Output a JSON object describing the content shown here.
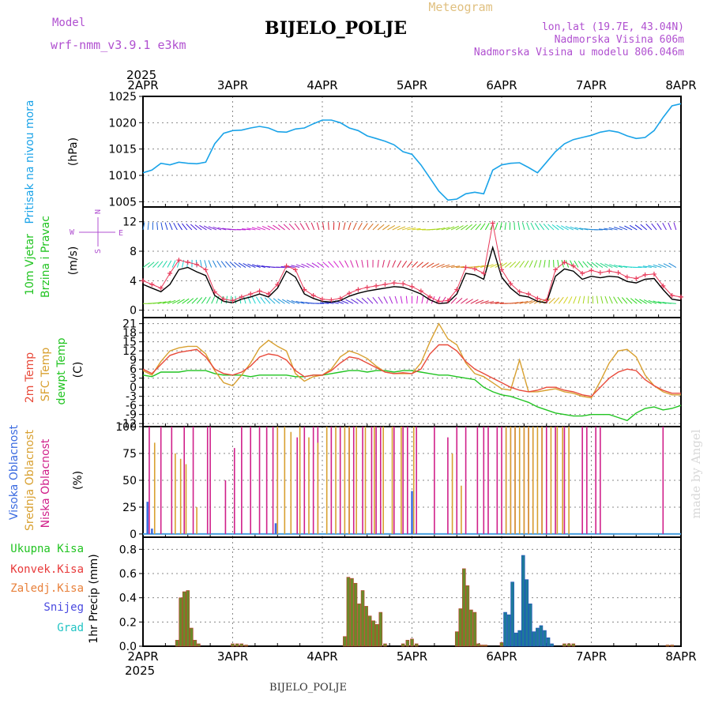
{
  "header": {
    "model_label": "Model",
    "model_name": "wrf-nmm_v3.9.1  e3km",
    "station": "BIJELO_POLJE",
    "product": "Meteogram",
    "lonlat": "lon,lat (19.7E, 43.04N)",
    "elevation": "Nadmorska Visina 606m",
    "model_elevation": "Nadmorska Visina u modelu 806.046m"
  },
  "footer": {
    "station": "BIJELO_POLJE",
    "credit": "made by Angel"
  },
  "colors": {
    "pressure": "#1aa3e8",
    "temp2m": "#e84a3a",
    "sfc": "#d8a030",
    "dew": "#22c422",
    "wind_obs": "#e83a5a",
    "wind_line": "#000000",
    "high": "#3a6ae0",
    "mid": "#d8a030",
    "low": "#d0208a",
    "total": "#22c422",
    "conv": "#e83a3a",
    "frozen": "#e8803a",
    "snow": "#4a4ae0",
    "grad": "#22c4c4",
    "violet": "#b050d0"
  },
  "chart_data": [
    {
      "id": "pressure",
      "type": "line",
      "ylabel_main": "Pritisak na nivou mora",
      "ylabel_unit": "(hPa)",
      "ylim": [
        1004,
        1025
      ],
      "yticks": [
        1005,
        1010,
        1015,
        1020,
        1025
      ],
      "x": [
        0,
        0.1,
        0.2,
        0.3,
        0.4,
        0.5,
        0.6,
        0.7,
        0.8,
        0.9,
        1.0,
        1.1,
        1.2,
        1.3,
        1.4,
        1.5,
        1.6,
        1.7,
        1.8,
        1.9,
        2.0,
        2.1,
        2.2,
        2.3,
        2.4,
        2.5,
        2.6,
        2.7,
        2.8,
        2.9,
        3.0,
        3.1,
        3.2,
        3.3,
        3.4,
        3.5,
        3.6,
        3.7,
        3.8,
        3.9,
        4.0,
        4.1,
        4.2,
        4.3,
        4.4,
        4.5,
        4.6,
        4.7,
        4.8,
        4.9,
        5.0,
        5.1,
        5.2,
        5.3,
        5.4,
        5.5,
        5.6,
        5.7,
        5.8,
        5.9,
        6.0
      ],
      "values": [
        1010.5,
        1011,
        1012.3,
        1012,
        1012.5,
        1012.3,
        1012.2,
        1012.5,
        1016,
        1018,
        1018.5,
        1018.6,
        1019,
        1019.3,
        1019,
        1018.3,
        1018.2,
        1018.8,
        1019,
        1019.8,
        1020.5,
        1020.5,
        1020,
        1019,
        1018.5,
        1017.5,
        1017,
        1016.5,
        1015.8,
        1014.5,
        1014,
        1012,
        1009.5,
        1007,
        1005.3,
        1005.5,
        1006.5,
        1006.8,
        1006.5,
        1011,
        1012,
        1012.3,
        1012.4,
        1011.5,
        1010.5,
        1012.5,
        1014.5,
        1016,
        1016.8,
        1017.2,
        1017.6,
        1018.2,
        1018.5,
        1018.2,
        1017.5,
        1017,
        1017.2,
        1018.5,
        1021,
        1023.2,
        1023.6
      ]
    },
    {
      "id": "wind",
      "type": "line",
      "ylabel_main": "10m Vjetar",
      "ylabel_main2": "Brzina i Pravac",
      "ylabel_unit": "(m/s)",
      "compass": [
        "N",
        "S",
        "W",
        "E"
      ],
      "ylim": [
        -1,
        14
      ],
      "yticks": [
        0,
        4,
        8,
        12
      ],
      "x": [
        0,
        0.1,
        0.2,
        0.3,
        0.4,
        0.5,
        0.6,
        0.7,
        0.8,
        0.9,
        1.0,
        1.1,
        1.2,
        1.3,
        1.4,
        1.5,
        1.6,
        1.7,
        1.8,
        1.9,
        2.0,
        2.1,
        2.2,
        2.3,
        2.4,
        2.5,
        2.6,
        2.7,
        2.8,
        2.9,
        3.0,
        3.1,
        3.2,
        3.3,
        3.4,
        3.5,
        3.6,
        3.7,
        3.8,
        3.9,
        4.0,
        4.1,
        4.2,
        4.3,
        4.4,
        4.5,
        4.6,
        4.7,
        4.8,
        4.9,
        5.0,
        5.1,
        5.2,
        5.3,
        5.4,
        5.5,
        5.6,
        5.7,
        5.8,
        5.9,
        6.0
      ],
      "series": [
        {
          "name": "wind line",
          "values": [
            3.5,
            3,
            2.5,
            3.5,
            5.5,
            5.8,
            5.2,
            4.7,
            2,
            1.2,
            1,
            1.5,
            1.8,
            2.2,
            1.8,
            3,
            5.3,
            4.5,
            2.2,
            1.6,
            1.2,
            1.1,
            1.3,
            1.9,
            2.3,
            2.6,
            2.8,
            3,
            3.2,
            3.1,
            2.7,
            2.2,
            1.4,
            0.9,
            1,
            2.2,
            5,
            4.8,
            4.2,
            8.5,
            4.5,
            3,
            2,
            1.8,
            1.2,
            1,
            4.6,
            5.6,
            5.3,
            4.2,
            4.6,
            4.4,
            4.6,
            4.5,
            3.9,
            3.7,
            4.2,
            4.3,
            2.8,
            1.5,
            1.3
          ]
        },
        {
          "name": "gust",
          "values": [
            4,
            3.5,
            3,
            5,
            6.8,
            6.5,
            6.2,
            5.5,
            2.5,
            1.5,
            1.3,
            1.8,
            2.2,
            2.6,
            2.2,
            3.5,
            6,
            5.5,
            2.8,
            2,
            1.5,
            1.4,
            1.6,
            2.3,
            2.8,
            3.1,
            3.3,
            3.5,
            3.7,
            3.6,
            3.2,
            2.6,
            1.8,
            1.2,
            1.3,
            2.8,
            5.8,
            5.6,
            5,
            11.8,
            5.5,
            3.6,
            2.5,
            2.2,
            1.6,
            1.3,
            5.5,
            6.5,
            6,
            5,
            5.4,
            5.1,
            5.3,
            5.1,
            4.5,
            4.3,
            4.8,
            4.9,
            3.3,
            2,
            1.8
          ]
        }
      ]
    },
    {
      "id": "temperature",
      "type": "line",
      "ylabel_main": "2m Temp",
      "ylabel_main2": "SFC Temp",
      "ylabel_main3": "dewpt Temp",
      "ylabel_unit": "(C)",
      "ylim": [
        -13,
        23
      ],
      "yticks": [
        -12,
        -9,
        -6,
        -3,
        0,
        3,
        6,
        9,
        12,
        15,
        18,
        21
      ],
      "x": [
        0,
        0.1,
        0.2,
        0.3,
        0.4,
        0.5,
        0.6,
        0.7,
        0.8,
        0.9,
        1.0,
        1.1,
        1.2,
        1.3,
        1.4,
        1.5,
        1.6,
        1.7,
        1.8,
        1.9,
        2.0,
        2.1,
        2.2,
        2.3,
        2.4,
        2.5,
        2.6,
        2.7,
        2.8,
        2.9,
        3.0,
        3.1,
        3.2,
        3.3,
        3.4,
        3.5,
        3.6,
        3.7,
        3.8,
        3.9,
        4.0,
        4.1,
        4.2,
        4.3,
        4.4,
        4.5,
        4.6,
        4.7,
        4.8,
        4.9,
        5.0,
        5.1,
        5.2,
        5.3,
        5.4,
        5.5,
        5.6,
        5.7,
        5.8,
        5.9,
        6.0
      ],
      "series": [
        {
          "name": "2m Temp",
          "values": [
            6,
            4.5,
            7.5,
            10.5,
            11.5,
            12,
            12.5,
            10,
            6,
            4.5,
            4,
            5,
            7,
            10,
            11,
            10.5,
            9,
            5.5,
            3.5,
            4,
            4,
            5.5,
            8,
            10,
            9.5,
            8,
            6.5,
            5,
            4.5,
            4.8,
            4.5,
            6,
            11,
            14,
            14,
            12,
            8.5,
            6,
            4.5,
            3,
            1.5,
            0,
            -1,
            -1.5,
            -1,
            0,
            0,
            -1,
            -1.5,
            -2.5,
            -3,
            0,
            3,
            5,
            6,
            5.5,
            2.5,
            0.5,
            -1,
            -2,
            -2
          ]
        },
        {
          "name": "SFC Temp",
          "values": [
            5.5,
            4,
            8.5,
            12,
            13,
            13.5,
            13.5,
            11,
            5.5,
            1.5,
            0.5,
            4,
            8,
            13,
            15.5,
            13.5,
            12,
            4.5,
            2,
            3.5,
            4,
            6,
            10,
            12,
            11,
            9.5,
            7,
            5,
            4.5,
            4.5,
            4.5,
            8,
            15,
            21,
            16,
            14,
            8,
            4.5,
            3.5,
            1.5,
            -0.5,
            -1,
            9,
            -1.5,
            -1.5,
            -1,
            -0.5,
            -1.5,
            -2,
            -3,
            -3.5,
            2,
            8,
            12,
            12.5,
            10,
            4,
            0.5,
            -1.5,
            -2.5,
            -2.5
          ]
        },
        {
          "name": "dewpt Temp",
          "values": [
            4,
            3.5,
            5,
            5,
            5,
            5.5,
            5.5,
            5.5,
            4.5,
            4,
            4,
            4,
            3.5,
            4,
            4,
            4,
            4,
            3.5,
            3.5,
            4,
            4,
            4.5,
            5,
            5.5,
            5.5,
            5,
            5.5,
            5.5,
            5,
            5.5,
            5.5,
            5,
            4.5,
            4,
            4,
            3.5,
            3,
            2.5,
            0,
            -1.5,
            -2.5,
            -3,
            -4,
            -5,
            -6.5,
            -7.5,
            -8.5,
            -9,
            -9.5,
            -9.5,
            -9,
            -9,
            -9,
            -10,
            -11,
            -8.5,
            -7,
            -6.5,
            -7.5,
            -7,
            -6
          ]
        }
      ]
    },
    {
      "id": "cloud",
      "type": "bar",
      "ylabel_main": "Visoka Oblacnost",
      "ylabel_main2": "Srednja Oblacnost",
      "ylabel_main3": "Niska Oblacnost",
      "ylabel_unit": "(%)",
      "ylim": [
        -3,
        100
      ],
      "yticks": [
        0,
        25,
        50,
        75,
        100
      ],
      "series": [
        {
          "name": "low",
          "x": [
            0.07,
            0.2,
            0.32,
            0.46,
            0.56,
            0.72,
            0.75,
            0.92,
            1.02,
            1.1,
            1.2,
            1.3,
            1.38,
            1.45,
            1.5,
            1.72,
            1.8,
            1.9,
            1.95,
            2.1,
            2.2,
            2.3,
            2.35,
            2.45,
            2.55,
            2.6,
            2.65,
            2.8,
            2.9,
            2.95,
            3.05,
            3.25,
            3.4,
            3.5,
            3.6,
            3.73,
            3.8,
            3.85,
            3.95,
            4.0,
            4.05,
            4.1,
            4.15,
            4.25,
            4.3,
            4.35,
            4.45,
            4.5,
            4.6,
            4.7,
            4.9,
            4.95,
            5.05,
            5.1,
            5.8
          ],
          "values": [
            100,
            100,
            100,
            100,
            100,
            100,
            100,
            50,
            80,
            100,
            100,
            100,
            100,
            100,
            100,
            90,
            100,
            100,
            100,
            100,
            100,
            100,
            100,
            100,
            100,
            100,
            100,
            100,
            100,
            100,
            100,
            100,
            90,
            100,
            100,
            100,
            100,
            100,
            100,
            100,
            100,
            100,
            100,
            100,
            100,
            100,
            100,
            100,
            100,
            100,
            100,
            100,
            100,
            100,
            100
          ]
        },
        {
          "name": "mid",
          "x": [
            0.13,
            0.36,
            0.42,
            0.48,
            0.6,
            1.5,
            1.58,
            1.65,
            1.75,
            1.85,
            1.95,
            2.05,
            2.15,
            2.25,
            2.3,
            2.38,
            2.48,
            2.58,
            2.68,
            2.78,
            2.88,
            3.02,
            3.45,
            3.55,
            4.05,
            4.1,
            4.15,
            4.2,
            4.25,
            4.3,
            4.35,
            4.4,
            4.45,
            4.55,
            4.62,
            4.68,
            4.75
          ],
          "values": [
            85,
            75,
            70,
            65,
            25,
            100,
            100,
            95,
            100,
            90,
            85,
            100,
            100,
            100,
            100,
            100,
            100,
            100,
            100,
            100,
            100,
            100,
            75,
            45,
            100,
            100,
            100,
            100,
            100,
            100,
            100,
            100,
            100,
            100,
            100,
            100,
            100
          ]
        },
        {
          "name": "high",
          "x": [
            0.05,
            0.1,
            1.48,
            3.0
          ],
          "values": [
            30,
            5,
            10,
            40
          ]
        }
      ]
    },
    {
      "id": "precip",
      "type": "bar",
      "ylabel_main": "1hr Precip (mm)",
      "legend": [
        "Ukupna Kisa",
        "Konvek.Kisa",
        "Zaledj.Kisa",
        "Snijeg",
        "Grad"
      ],
      "ylim": [
        0,
        0.9
      ],
      "yticks": [
        0,
        0.2,
        0.4,
        0.6,
        0.8
      ],
      "x": [
        0.38,
        0.42,
        0.46,
        0.5,
        0.54,
        0.58,
        0.62,
        1.0,
        1.05,
        1.1,
        1.15,
        2.25,
        2.29,
        2.33,
        2.37,
        2.41,
        2.45,
        2.49,
        2.53,
        2.57,
        2.61,
        2.65,
        2.7,
        2.9,
        2.95,
        3.0,
        3.05,
        3.5,
        3.54,
        3.58,
        3.62,
        3.66,
        3.7,
        3.74,
        3.78,
        3.82,
        4.0,
        4.04,
        4.08,
        4.12,
        4.16,
        4.2,
        4.24,
        4.28,
        4.32,
        4.36,
        4.4,
        4.44,
        4.48,
        4.52,
        4.56,
        4.7,
        4.75,
        4.8,
        5.85,
        5.9
      ],
      "values": [
        0.05,
        0.4,
        0.45,
        0.46,
        0.15,
        0.05,
        0.02,
        0.02,
        0.02,
        0.02,
        0.01,
        0.08,
        0.57,
        0.56,
        0.52,
        0.35,
        0.46,
        0.33,
        0.25,
        0.21,
        0.18,
        0.28,
        0.02,
        0.02,
        0.05,
        0.06,
        0.02,
        0.12,
        0.31,
        0.64,
        0.5,
        0.3,
        0.28,
        0.02,
        0.01,
        0.01,
        0.03,
        0.28,
        0.26,
        0.53,
        0.11,
        0.13,
        0.75,
        0.55,
        0.35,
        0.12,
        0.15,
        0.17,
        0.13,
        0.07,
        0.02,
        0.02,
        0.02,
        0.02,
        0.01,
        0.01
      ]
    }
  ],
  "x_axis": {
    "year_top": "2025",
    "year_bottom": "2025",
    "ticks": [
      "2APR",
      "3APR",
      "4APR",
      "5APR",
      "6APR",
      "7APR",
      "8APR"
    ]
  }
}
